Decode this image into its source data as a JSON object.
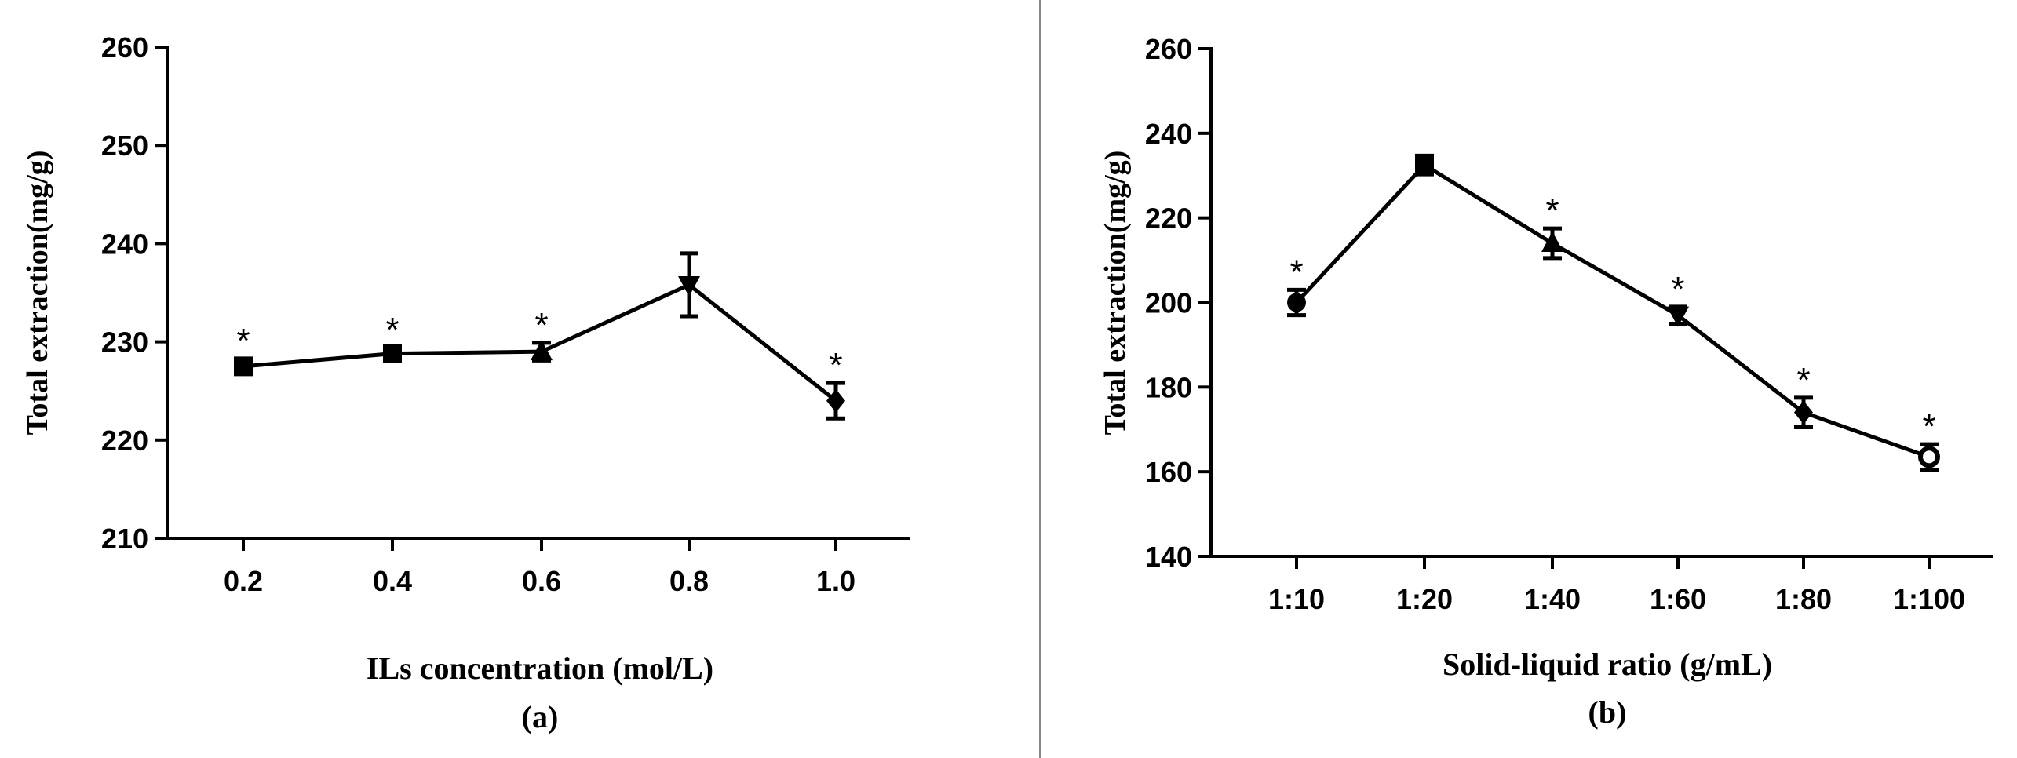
{
  "chart_data": [
    {
      "type": "line",
      "panel_label": "(a)",
      "title": "",
      "xlabel": "ILs concentration (mol/L)",
      "ylabel": "Total extraction(mg/g)",
      "categories": [
        "0.2",
        "0.4",
        "0.6",
        "0.8",
        "1.0"
      ],
      "values": [
        227.5,
        228.8,
        229.0,
        235.8,
        224.0
      ],
      "errors": [
        0.8,
        0.6,
        0.9,
        3.2,
        1.8
      ],
      "markers": [
        "square",
        "square",
        "triangle-up",
        "triangle-down",
        "diamond"
      ],
      "significance": [
        "*",
        "*",
        "*",
        "",
        "*"
      ],
      "ylim": [
        210,
        260
      ],
      "yticks": [
        210,
        220,
        230,
        240,
        250,
        260
      ],
      "ytick_labels": [
        "210",
        "220",
        "230",
        "240",
        "250",
        "260"
      ],
      "grid": false
    },
    {
      "type": "line",
      "panel_label": "(b)",
      "title": "",
      "xlabel": "Solid-liquid ratio (g/mL)",
      "ylabel": "Total extraction(mg/g)",
      "categories": [
        "1:10",
        "1:20",
        "1:40",
        "1:60",
        "1:80",
        "1:100"
      ],
      "values": [
        200,
        232.5,
        214,
        197,
        174,
        163.5
      ],
      "errors": [
        3.0,
        2.2,
        3.5,
        2.0,
        3.5,
        3.0
      ],
      "markers": [
        "circle",
        "square",
        "triangle-up",
        "triangle-down",
        "diamond",
        "circle-open"
      ],
      "significance": [
        "*",
        "",
        "*",
        "*",
        "*",
        "*"
      ],
      "ylim": [
        140,
        260
      ],
      "yticks": [
        140,
        160,
        180,
        200,
        220,
        240,
        260
      ],
      "ytick_labels": [
        "140",
        "160",
        "180",
        "200",
        "220",
        "240",
        "260"
      ],
      "grid": false
    }
  ],
  "colors": {
    "ink": "#000000",
    "divider": "#888888"
  }
}
